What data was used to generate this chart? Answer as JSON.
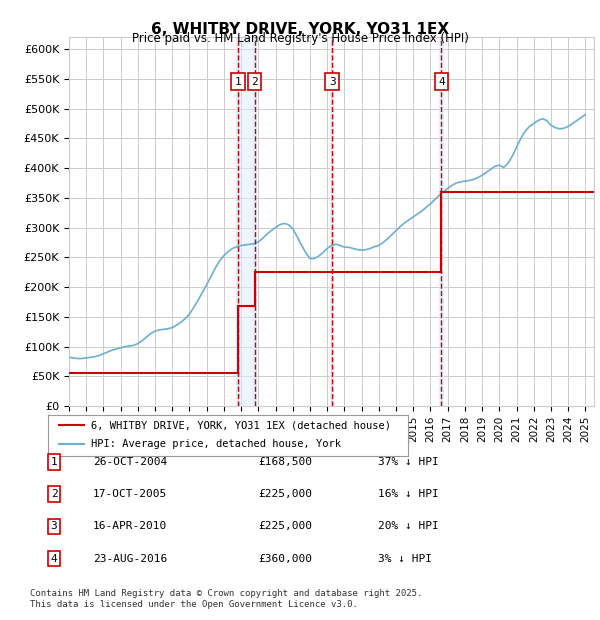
{
  "title": "6, WHITBY DRIVE, YORK, YO31 1EX",
  "subtitle": "Price paid vs. HM Land Registry's House Price Index (HPI)",
  "ylabel_ticks": [
    "£0",
    "£50K",
    "£100K",
    "£150K",
    "£200K",
    "£250K",
    "£300K",
    "£350K",
    "£400K",
    "£450K",
    "£500K",
    "£550K",
    "£600K"
  ],
  "ylim": [
    0,
    620000
  ],
  "yticks": [
    0,
    50000,
    100000,
    150000,
    200000,
    250000,
    300000,
    350000,
    400000,
    450000,
    500000,
    550000,
    600000
  ],
  "xmin": 1995.0,
  "xmax": 2025.5,
  "transactions": [
    {
      "num": 1,
      "date": "26-OCT-2004",
      "x": 2004.82,
      "price": 168500,
      "pct": "37% ↓ HPI"
    },
    {
      "num": 2,
      "date": "17-OCT-2005",
      "x": 2005.79,
      "price": 225000,
      "pct": "16% ↓ HPI"
    },
    {
      "num": 3,
      "date": "16-APR-2010",
      "x": 2010.29,
      "price": 225000,
      "pct": "20% ↓ HPI"
    },
    {
      "num": 4,
      "date": "23-AUG-2016",
      "x": 2016.64,
      "price": 360000,
      "pct": "3% ↓ HPI"
    }
  ],
  "legend_line1": "6, WHITBY DRIVE, YORK, YO31 1EX (detached house)",
  "legend_line2": "HPI: Average price, detached house, York",
  "footer": "Contains HM Land Registry data © Crown copyright and database right 2025.\nThis data is licensed under the Open Government Licence v3.0.",
  "hpi_color": "#6baed6",
  "price_color": "#cc0000",
  "marker_box_color": "#cc0000",
  "vline_color": "#cc0000",
  "shade_color": "#ddeeff",
  "background_color": "#ffffff",
  "grid_color": "#cccccc",
  "hpi_data": {
    "years": [
      1995.0,
      1995.25,
      1995.5,
      1995.75,
      1996.0,
      1996.25,
      1996.5,
      1996.75,
      1997.0,
      1997.25,
      1997.5,
      1997.75,
      1998.0,
      1998.25,
      1998.5,
      1998.75,
      1999.0,
      1999.25,
      1999.5,
      1999.75,
      2000.0,
      2000.25,
      2000.5,
      2000.75,
      2001.0,
      2001.25,
      2001.5,
      2001.75,
      2002.0,
      2002.25,
      2002.5,
      2002.75,
      2003.0,
      2003.25,
      2003.5,
      2003.75,
      2004.0,
      2004.25,
      2004.5,
      2004.75,
      2005.0,
      2005.25,
      2005.5,
      2005.75,
      2006.0,
      2006.25,
      2006.5,
      2006.75,
      2007.0,
      2007.25,
      2007.5,
      2007.75,
      2008.0,
      2008.25,
      2008.5,
      2008.75,
      2009.0,
      2009.25,
      2009.5,
      2009.75,
      2010.0,
      2010.25,
      2010.5,
      2010.75,
      2011.0,
      2011.25,
      2011.5,
      2011.75,
      2012.0,
      2012.25,
      2012.5,
      2012.75,
      2013.0,
      2013.25,
      2013.5,
      2013.75,
      2014.0,
      2014.25,
      2014.5,
      2014.75,
      2015.0,
      2015.25,
      2015.5,
      2015.75,
      2016.0,
      2016.25,
      2016.5,
      2016.75,
      2017.0,
      2017.25,
      2017.5,
      2017.75,
      2018.0,
      2018.25,
      2018.5,
      2018.75,
      2019.0,
      2019.25,
      2019.5,
      2019.75,
      2020.0,
      2020.25,
      2020.5,
      2020.75,
      2021.0,
      2021.25,
      2021.5,
      2021.75,
      2022.0,
      2022.25,
      2022.5,
      2022.75,
      2023.0,
      2023.25,
      2023.5,
      2023.75,
      2024.0,
      2024.25,
      2024.5,
      2024.75,
      2025.0
    ],
    "values": [
      82000,
      81000,
      80000,
      80000,
      81000,
      82000,
      83000,
      85000,
      88000,
      91000,
      94000,
      96000,
      98000,
      100000,
      101000,
      102000,
      105000,
      110000,
      116000,
      122000,
      126000,
      128000,
      129000,
      130000,
      132000,
      136000,
      141000,
      147000,
      155000,
      166000,
      178000,
      191000,
      204000,
      218000,
      232000,
      244000,
      253000,
      260000,
      265000,
      268000,
      270000,
      271000,
      272000,
      273000,
      276000,
      282000,
      289000,
      295000,
      300000,
      305000,
      307000,
      305000,
      298000,
      285000,
      271000,
      258000,
      248000,
      248000,
      252000,
      258000,
      265000,
      270000,
      272000,
      270000,
      267000,
      267000,
      265000,
      263000,
      262000,
      263000,
      265000,
      268000,
      270000,
      275000,
      281000,
      288000,
      295000,
      302000,
      308000,
      313000,
      318000,
      323000,
      328000,
      334000,
      340000,
      347000,
      354000,
      360000,
      366000,
      371000,
      375000,
      377000,
      378000,
      379000,
      381000,
      384000,
      388000,
      393000,
      398000,
      403000,
      405000,
      401000,
      408000,
      420000,
      435000,
      450000,
      462000,
      470000,
      475000,
      480000,
      483000,
      480000,
      472000,
      468000,
      466000,
      467000,
      470000,
      475000,
      480000,
      485000,
      490000
    ]
  },
  "price_paid_data": {
    "segments": [
      {
        "x": [
          1995.0,
          2004.82
        ],
        "y": [
          55000,
          55000
        ]
      },
      {
        "x": [
          2004.82,
          2004.82
        ],
        "y": [
          55000,
          168500
        ]
      },
      {
        "x": [
          2004.82,
          2005.79
        ],
        "y": [
          168500,
          168500
        ]
      },
      {
        "x": [
          2005.79,
          2005.79
        ],
        "y": [
          168500,
          225000
        ]
      },
      {
        "x": [
          2005.79,
          2010.29
        ],
        "y": [
          225000,
          225000
        ]
      },
      {
        "x": [
          2010.29,
          2010.29
        ],
        "y": [
          225000,
          225000
        ]
      },
      {
        "x": [
          2010.29,
          2016.64
        ],
        "y": [
          225000,
          225000
        ]
      },
      {
        "x": [
          2016.64,
          2016.64
        ],
        "y": [
          225000,
          360000
        ]
      },
      {
        "x": [
          2016.64,
          2025.5
        ],
        "y": [
          360000,
          360000
        ]
      }
    ]
  }
}
